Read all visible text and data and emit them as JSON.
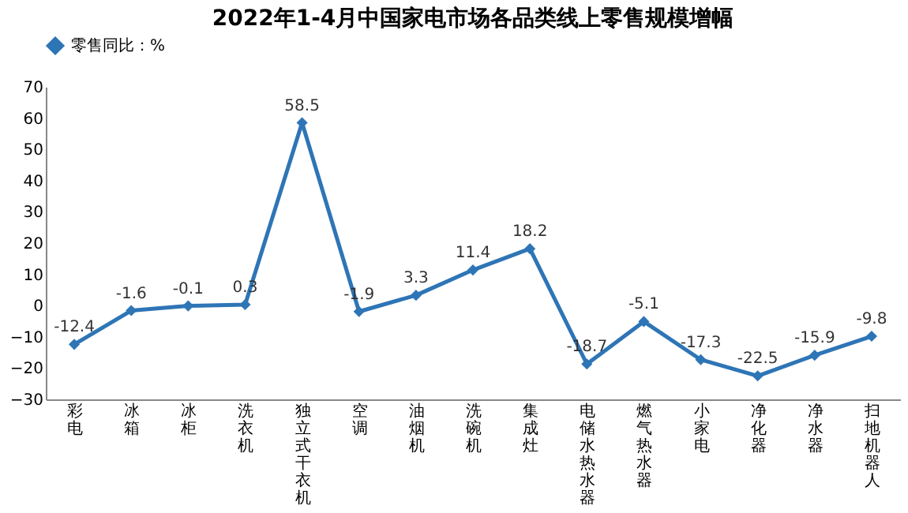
{
  "chart_data": {
    "type": "line",
    "title": "2022年1-4月中国家电市场各品类线上零售规模增幅",
    "categories": [
      "彩电",
      "冰箱",
      "冰柜",
      "洗衣机",
      "独立式干衣机",
      "空调",
      "油烟机",
      "洗碗机",
      "集成灶",
      "电储水热水器",
      "燃气热水器",
      "小家电",
      "净化器",
      "净水器",
      "扫地机器人"
    ],
    "series": [
      {
        "name": "零售同比：%",
        "color": "#2e75b6",
        "values": [
          -12.4,
          -1.6,
          -0.1,
          0.3,
          58.5,
          -1.9,
          3.3,
          11.4,
          18.2,
          -18.7,
          -5.1,
          -17.3,
          -22.5,
          -15.9,
          -9.8
        ]
      }
    ],
    "ylim": [
      -30,
      70
    ],
    "yticks": [
      -30,
      -20,
      -10,
      0,
      10,
      20,
      30,
      40,
      50,
      60,
      70
    ],
    "grid": false,
    "legend": "top",
    "marker": "diamond",
    "line_style": "solid",
    "data_labels": true
  }
}
